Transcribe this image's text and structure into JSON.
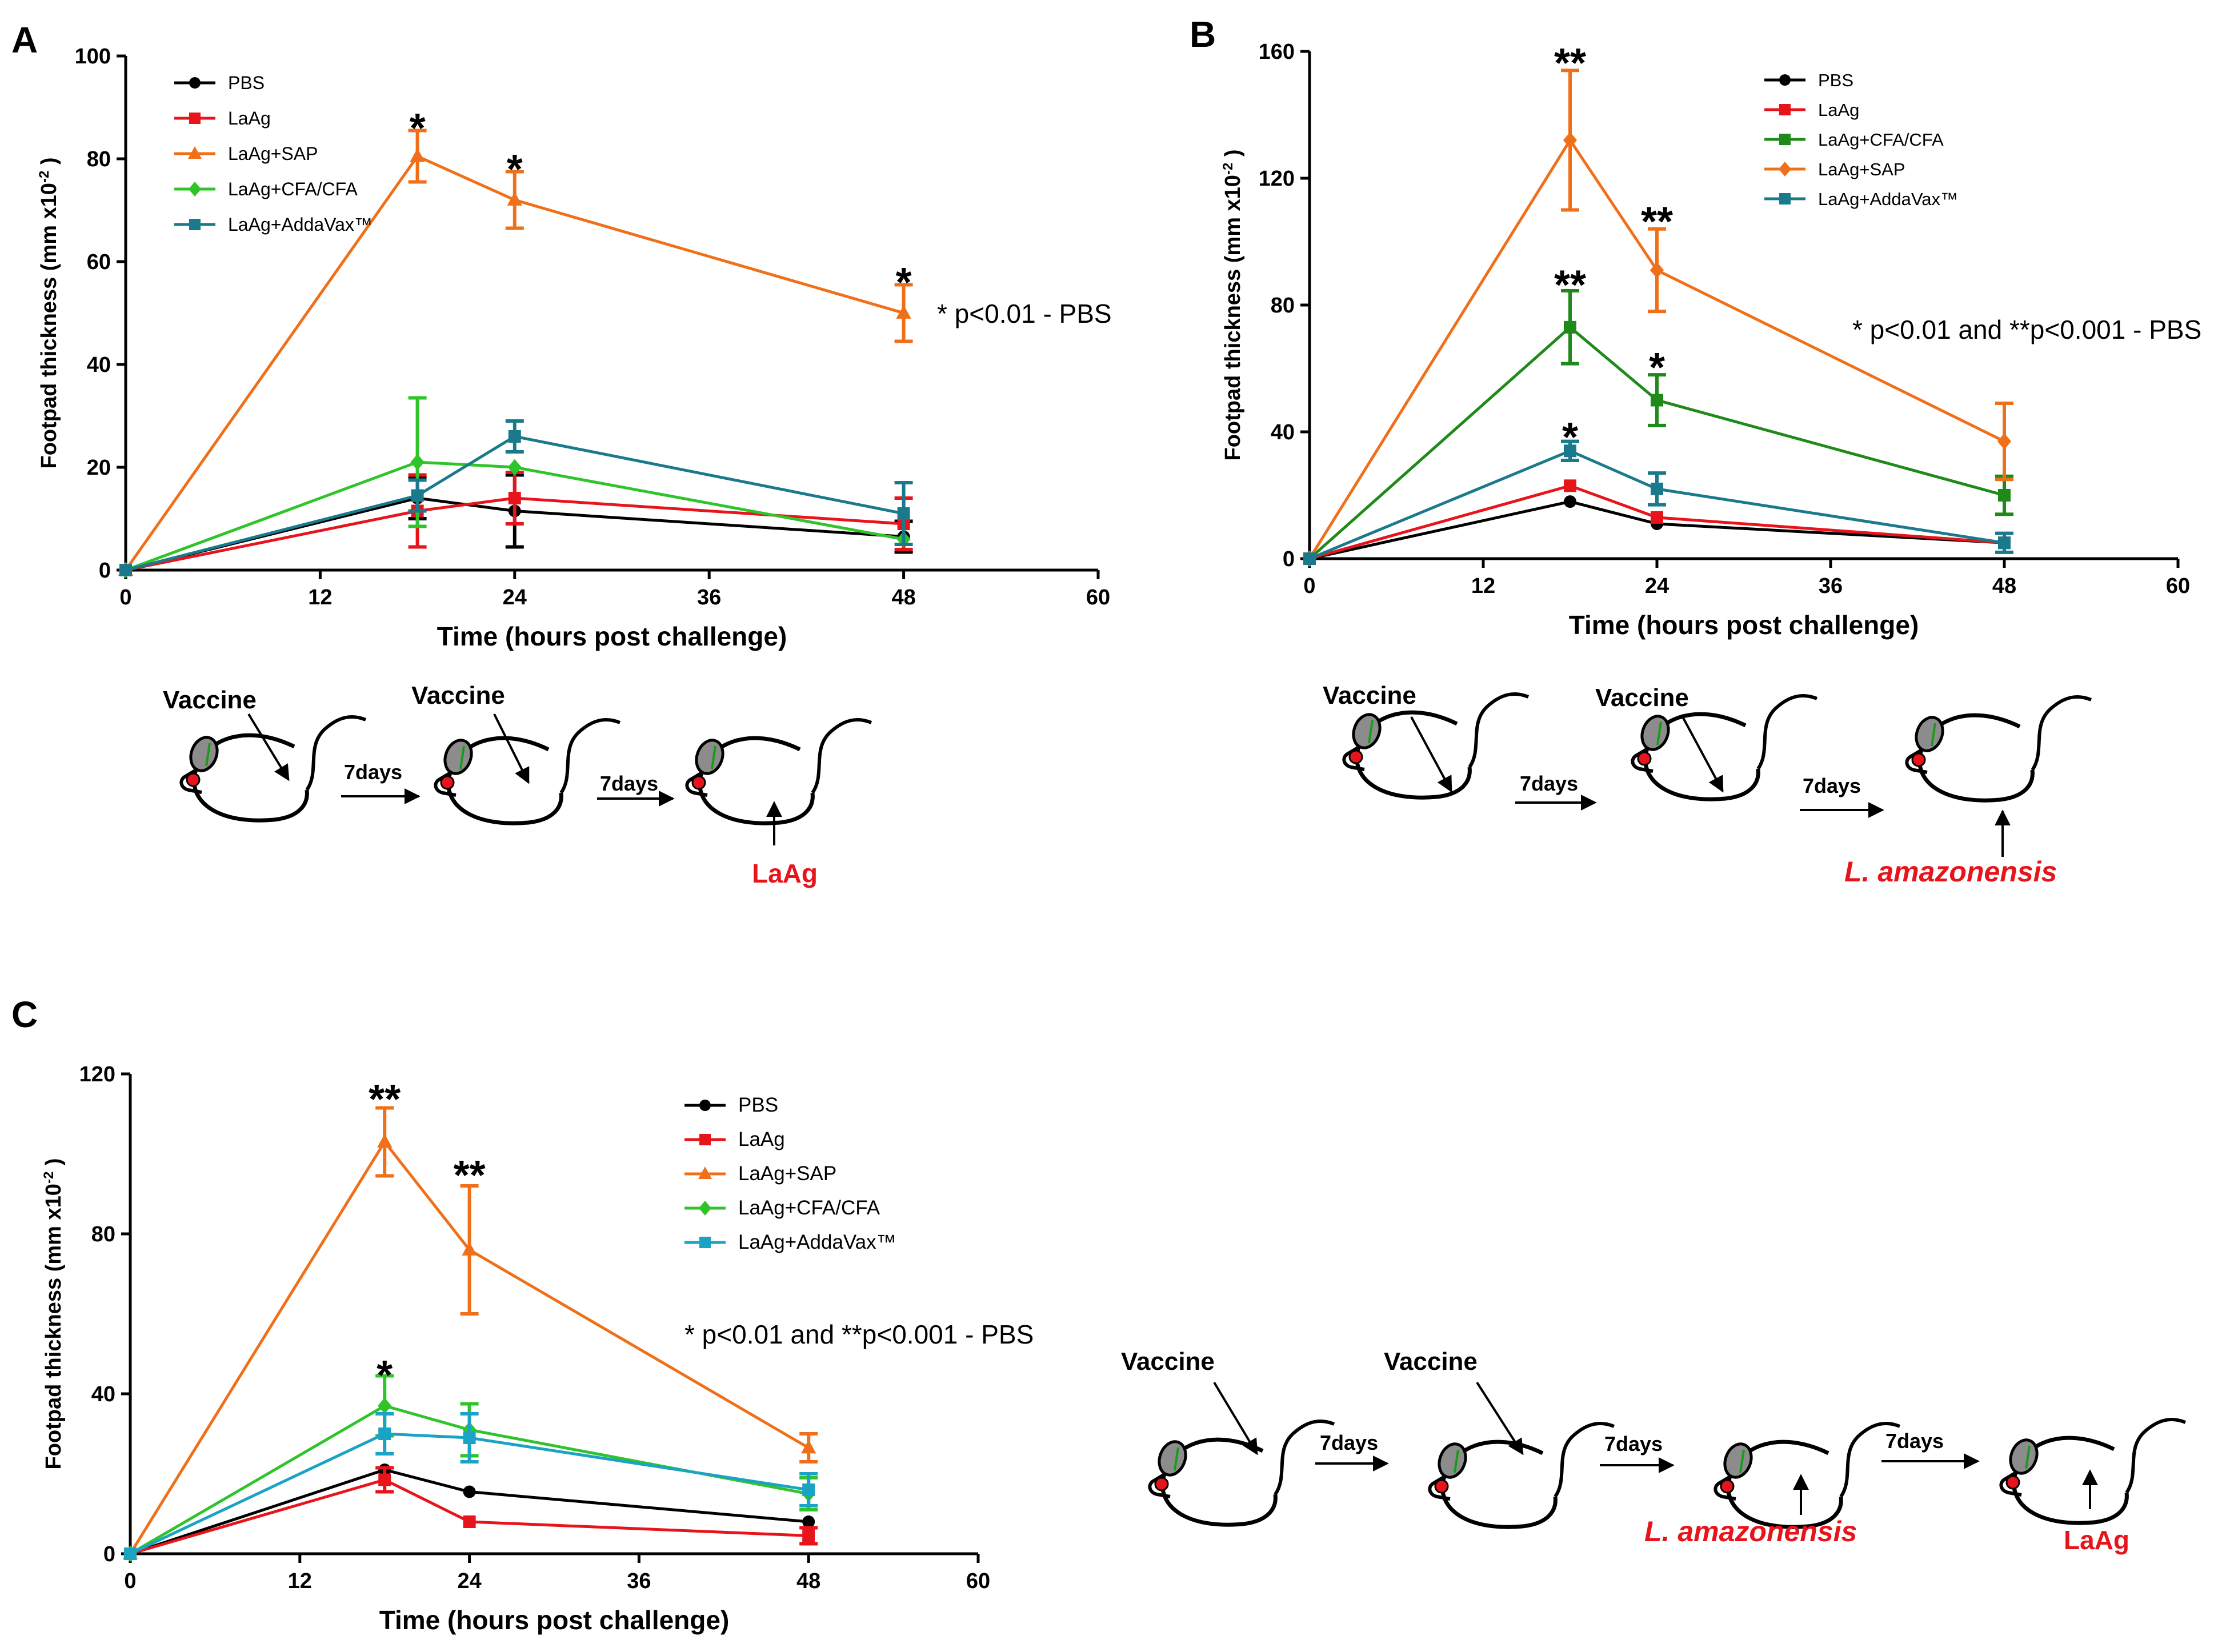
{
  "colors": {
    "pbs": "#000000",
    "laag": "#e8141b",
    "sap": "#f07019",
    "cfa_a": "#2fc42a",
    "cfa_b": "#1f8a1a",
    "addavax_a": "#1a7a8c",
    "addavax_b": "#1a7a8c",
    "addavax_c": "#1aa3c4",
    "challenge_text": "#e8141b"
  },
  "chart_data": [
    {
      "panel": "A",
      "type": "line",
      "xlabel": "Time (hours post challenge)",
      "ylabel": "Footpad thickness (mm x10",
      "ylabel_sup": "-2",
      "ylabel_close": " )",
      "xlim": [
        0,
        60
      ],
      "ylim": [
        0,
        100
      ],
      "xticks": [
        0,
        12,
        24,
        36,
        48,
        60
      ],
      "yticks": [
        0,
        20,
        40,
        60,
        80,
        100
      ],
      "legend_position": "top-left",
      "note": "* p<0.01 - PBS",
      "series": [
        {
          "name": "PBS",
          "color": "pbs",
          "marker": "circle",
          "x": [
            0,
            18,
            24,
            48
          ],
          "y": [
            0,
            14,
            11.5,
            6.5
          ],
          "err": [
            0,
            4,
            7,
            3
          ]
        },
        {
          "name": "LaAg",
          "color": "laag",
          "marker": "square",
          "x": [
            0,
            18,
            24,
            48
          ],
          "y": [
            0,
            11.5,
            14,
            9
          ],
          "err": [
            0,
            7,
            5,
            5
          ]
        },
        {
          "name": "LaAg+SAP",
          "color": "sap",
          "marker": "triangle",
          "x": [
            0,
            18,
            24,
            48
          ],
          "y": [
            0,
            80.5,
            72,
            50
          ],
          "err": [
            0,
            5,
            5.5,
            5.5
          ]
        },
        {
          "name": "LaAg+CFA/CFA",
          "color": "cfa_a",
          "marker": "diamond",
          "x": [
            0,
            18,
            24,
            48
          ],
          "y": [
            0,
            21,
            20,
            6
          ],
          "err": [
            0,
            12.5,
            0,
            0
          ]
        },
        {
          "name": "LaAg+AddaVax™",
          "color": "addavax_a",
          "marker": "square",
          "x": [
            0,
            18,
            24,
            48
          ],
          "y": [
            0,
            14.5,
            26,
            11
          ],
          "err": [
            0,
            3,
            3,
            6
          ]
        }
      ],
      "annotations": [
        {
          "text": "*",
          "x": 18,
          "y": 87
        },
        {
          "text": "*",
          "x": 24,
          "y": 79
        },
        {
          "text": "*",
          "x": 48,
          "y": 57
        }
      ]
    },
    {
      "panel": "B",
      "type": "line",
      "xlabel": "Time (hours post challenge)",
      "ylabel": "Footpad thickness (mm x10",
      "ylabel_sup": "-2",
      "ylabel_close": " )",
      "xlim": [
        0,
        60
      ],
      "ylim": [
        0,
        160
      ],
      "xticks": [
        0,
        12,
        24,
        36,
        48,
        60
      ],
      "yticks": [
        0,
        40,
        80,
        120,
        160
      ],
      "legend_position": "top-right",
      "note": "* p<0.01 and **p<0.001 - PBS",
      "series": [
        {
          "name": "PBS",
          "color": "pbs",
          "marker": "circle",
          "x": [
            0,
            18,
            24,
            48
          ],
          "y": [
            0,
            18,
            11,
            5
          ],
          "err": [
            0,
            0,
            0,
            0
          ]
        },
        {
          "name": "LaAg",
          "color": "laag",
          "marker": "square",
          "x": [
            0,
            18,
            24,
            48
          ],
          "y": [
            0,
            23,
            13,
            5
          ],
          "err": [
            0,
            0,
            0,
            0
          ]
        },
        {
          "name": "LaAg+CFA/CFA",
          "color": "cfa_b",
          "marker": "square",
          "x": [
            0,
            18,
            24,
            48
          ],
          "y": [
            0,
            73,
            50,
            20
          ],
          "err": [
            0,
            11.5,
            8,
            6
          ]
        },
        {
          "name": "LaAg+SAP",
          "color": "sap",
          "marker": "diamond",
          "x": [
            0,
            18,
            24,
            48
          ],
          "y": [
            0,
            132,
            91,
            37
          ],
          "err": [
            0,
            22,
            13,
            12
          ]
        },
        {
          "name": "LaAg+AddaVax™",
          "color": "addavax_b",
          "marker": "square",
          "x": [
            0,
            18,
            24,
            48
          ],
          "y": [
            0,
            34,
            22,
            5
          ],
          "err": [
            0,
            3,
            5,
            3
          ]
        }
      ],
      "annotations": [
        {
          "text": "**",
          "x": 18,
          "y": 158
        },
        {
          "text": "**",
          "x": 24,
          "y": 108
        },
        {
          "text": "**",
          "x": 18,
          "y": 88
        },
        {
          "text": "*",
          "x": 24,
          "y": 62
        },
        {
          "text": "*",
          "x": 18,
          "y": 40
        }
      ]
    },
    {
      "panel": "C",
      "type": "line",
      "xlabel": "Time (hours post challenge)",
      "ylabel": "Footpad thickness (mm x10",
      "ylabel_sup": "-2",
      "ylabel_close": " )",
      "xlim": [
        0,
        60
      ],
      "ylim": [
        0,
        120
      ],
      "xticks": [
        0,
        12,
        24,
        36,
        48,
        60
      ],
      "yticks": [
        0,
        40,
        80,
        120
      ],
      "legend_position": "top-right",
      "note": "* p<0.01 and **p<0.001 - PBS",
      "series": [
        {
          "name": "PBS",
          "color": "pbs",
          "marker": "circle",
          "x": [
            0,
            18,
            24,
            48
          ],
          "y": [
            0,
            21,
            15.5,
            8
          ],
          "err": [
            0,
            0,
            0,
            0
          ]
        },
        {
          "name": "LaAg",
          "color": "laag",
          "marker": "square",
          "x": [
            0,
            18,
            24,
            48
          ],
          "y": [
            0,
            18.5,
            8,
            4.5
          ],
          "err": [
            0,
            3,
            0,
            2
          ]
        },
        {
          "name": "LaAg+SAP",
          "color": "sap",
          "marker": "triangle",
          "x": [
            0,
            18,
            24,
            48
          ],
          "y": [
            0,
            103,
            76,
            26.5
          ],
          "err": [
            0,
            8.5,
            16,
            3.5
          ]
        },
        {
          "name": "LaAg+CFA/CFA",
          "color": "cfa_a",
          "marker": "diamond",
          "x": [
            0,
            18,
            24,
            48
          ],
          "y": [
            0,
            37,
            31,
            15
          ],
          "err": [
            0,
            7.5,
            6.5,
            4
          ]
        },
        {
          "name": "LaAg+AddaVax™",
          "color": "addavax_c",
          "marker": "square",
          "x": [
            0,
            18,
            24,
            48
          ],
          "y": [
            0,
            30,
            29,
            16
          ],
          "err": [
            0,
            5,
            6,
            4
          ]
        }
      ],
      "annotations": [
        {
          "text": "**",
          "x": 18,
          "y": 115
        },
        {
          "text": "**",
          "x": 24,
          "y": 96
        },
        {
          "text": "*",
          "x": 18,
          "y": 46
        }
      ]
    }
  ],
  "panel_letters": [
    "A",
    "B",
    "C"
  ],
  "schemes": {
    "vaccine": "Vaccine",
    "interval": "7days",
    "laag": "LaAg",
    "amazonensis": "L. amazonensis"
  }
}
